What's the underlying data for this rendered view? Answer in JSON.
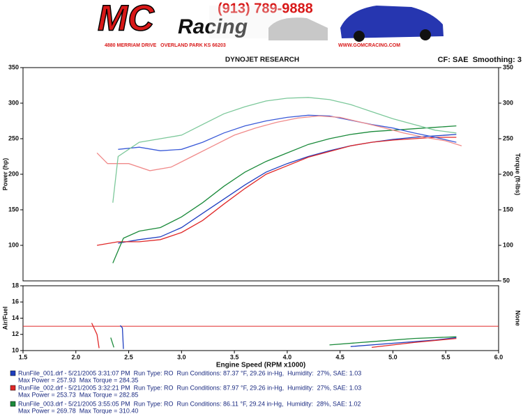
{
  "header": {
    "logo_mc": "MC",
    "logo_racing": "Racing",
    "phone": "(913) 789-9888",
    "address": "4880 MERRIAM DRIVE   OVERLAND PARK KS 66203",
    "website": "WWW.GOMCRACING.COM"
  },
  "chart_data": [
    {
      "type": "line",
      "title": "DYNOJET RESEARCH",
      "note": "CF: SAE  Smoothing: 3",
      "y_label": "Power (hp)",
      "y2_label": "Torque (ft-lbs)",
      "xlim": [
        1.5,
        6.0
      ],
      "ylim": [
        50,
        350
      ],
      "yticks": [
        100,
        150,
        200,
        250,
        300,
        350
      ],
      "y2lim": [
        50,
        350
      ],
      "y2ticks": [
        50,
        100,
        150,
        200,
        250,
        300,
        350
      ],
      "grid": false,
      "series": [
        {
          "color": "#1f3fc0",
          "x": [
            2.4,
            2.6,
            2.8,
            3.0,
            3.2,
            3.4,
            3.6,
            3.8,
            4.0,
            4.2,
            4.4,
            4.6,
            4.8,
            5.0,
            5.2,
            5.4,
            5.6
          ],
          "values": [
            103,
            108,
            112,
            125,
            145,
            165,
            185,
            203,
            215,
            225,
            233,
            240,
            245,
            249,
            252,
            254,
            256
          ]
        },
        {
          "color": "#e02828",
          "x": [
            2.2,
            2.4,
            2.6,
            2.8,
            3.0,
            3.2,
            3.4,
            3.6,
            3.8,
            4.0,
            4.2,
            4.4,
            4.6,
            4.8,
            5.0,
            5.2,
            5.4,
            5.6
          ],
          "values": [
            100,
            105,
            105,
            108,
            118,
            135,
            158,
            180,
            200,
            212,
            224,
            232,
            240,
            245,
            248,
            250,
            252,
            252
          ]
        },
        {
          "color": "#1a8a3a",
          "x": [
            2.35,
            2.45,
            2.6,
            2.8,
            3.0,
            3.2,
            3.4,
            3.6,
            3.8,
            4.0,
            4.2,
            4.4,
            4.6,
            4.8,
            5.0,
            5.2,
            5.4,
            5.6
          ],
          "values": [
            75,
            110,
            120,
            125,
            140,
            160,
            183,
            203,
            218,
            230,
            242,
            250,
            256,
            260,
            262,
            264,
            266,
            268
          ]
        },
        {
          "color": "#3a5ad8",
          "axis": "y2",
          "x": [
            2.4,
            2.6,
            2.8,
            3.0,
            3.2,
            3.4,
            3.6,
            3.8,
            4.0,
            4.2,
            4.4,
            4.6,
            4.8,
            5.0,
            5.2,
            5.4,
            5.6
          ],
          "values": [
            235,
            238,
            233,
            235,
            245,
            258,
            268,
            275,
            280,
            283,
            282,
            276,
            270,
            265,
            258,
            252,
            245
          ]
        },
        {
          "color": "#f08a8a",
          "axis": "y2",
          "x": [
            2.2,
            2.3,
            2.5,
            2.7,
            2.9,
            3.1,
            3.3,
            3.5,
            3.7,
            3.9,
            4.1,
            4.3,
            4.5,
            4.7,
            4.9,
            5.1,
            5.3,
            5.5,
            5.65
          ],
          "values": [
            230,
            215,
            215,
            205,
            210,
            225,
            240,
            255,
            265,
            273,
            279,
            282,
            280,
            273,
            266,
            258,
            252,
            247,
            240
          ]
        },
        {
          "color": "#7cc89a",
          "axis": "y2",
          "x": [
            2.35,
            2.4,
            2.6,
            2.8,
            3.0,
            3.2,
            3.4,
            3.6,
            3.8,
            4.0,
            4.2,
            4.4,
            4.6,
            4.8,
            5.0,
            5.2,
            5.4,
            5.6
          ],
          "values": [
            160,
            225,
            245,
            250,
            255,
            270,
            285,
            295,
            303,
            307,
            308,
            305,
            298,
            288,
            278,
            270,
            262,
            258
          ]
        }
      ]
    },
    {
      "type": "line",
      "y_label": "Air/Fuel",
      "y2_label": "None",
      "x_label": "Engine Speed (RPM x1000)",
      "xlim": [
        1.5,
        6.0
      ],
      "xticks": [
        1.5,
        {
          "value": 2,
          "label": "2.0"
        },
        2.5,
        {
          "value": 3,
          "label": "3.0"
        },
        3.5,
        {
          "value": 4,
          "label": "4.0"
        },
        4.5,
        {
          "value": 5,
          "label": "5.0"
        },
        5.5,
        {
          "value": 6,
          "label": "6.0"
        }
      ],
      "ylim": [
        10,
        18
      ],
      "yticks": [
        10,
        12,
        14,
        16,
        18
      ],
      "grid": false,
      "reference_line": {
        "value": 13,
        "color": "#e02828"
      },
      "series": [
        {
          "color": "#1f3fc0",
          "x": [
            2.42,
            2.44,
            2.45,
            4.2,
            4.6,
            5.0,
            5.4,
            5.6
          ],
          "values": [
            13.1,
            12.8,
            10.2,
            null,
            10.5,
            10.9,
            11.3,
            11.6
          ]
        },
        {
          "color": "#e02828",
          "x": [
            2.15,
            2.2,
            2.22,
            4.4,
            4.8,
            5.2,
            5.6
          ],
          "values": [
            13.4,
            12.0,
            10.3,
            null,
            10.4,
            11.0,
            11.5
          ]
        },
        {
          "color": "#1a8a3a",
          "x": [
            2.33,
            2.36,
            4.0,
            4.4,
            4.8,
            5.2,
            5.6
          ],
          "values": [
            11.6,
            10.4,
            null,
            10.7,
            11.1,
            11.5,
            11.7
          ]
        }
      ]
    }
  ],
  "legend": [
    {
      "color": "#1f3fc0",
      "file": "RunFile_001.drf - 5/21/2005 3:31:07 PM  Run Type: RO  Run Conditions: 87.37 °F, 29.26 in-Hg,  Humidity:  27%, SAE: 1.03",
      "stats": "Max Power = 257.93  Max Torque = 284.35"
    },
    {
      "color": "#e02828",
      "file": "RunFile_002.drf - 5/21/2005 3:32:21 PM  Run Type: RO  Run Conditions: 87.97 °F, 29.26 in-Hg,  Humidity:  27%, SAE: 1.03",
      "stats": "Max Power = 253.73  Max Torque = 282.85"
    },
    {
      "color": "#1a8a3a",
      "file": "RunFile_003.drf - 5/21/2005 3:55:05 PM  Run Type: RO  Run Conditions: 86.11 °F, 29.24 in-Hg,  Humidity:  28%, SAE: 1.02",
      "stats": "Max Power = 269.78  Max Torque = 310.40"
    }
  ]
}
